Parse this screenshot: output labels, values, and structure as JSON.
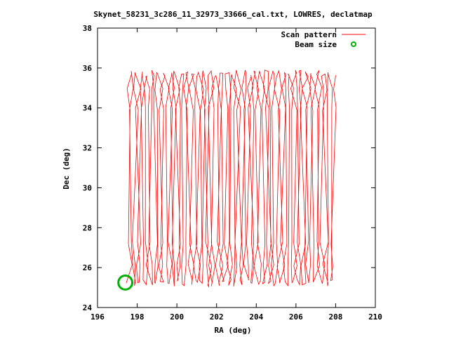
{
  "chart_data": {
    "type": "line",
    "title": "Skynet_58231_3c286_11_32973_33666_cal.txt, LOWRES, declatmap",
    "xlabel": "RA (deg)",
    "ylabel": "Dec (deg)",
    "xlim": [
      196,
      210
    ],
    "ylim": [
      24,
      38
    ],
    "xticks": [
      "196",
      "198",
      "200",
      "202",
      "204",
      "206",
      "208",
      "210"
    ],
    "yticks": [
      "24",
      "26",
      "28",
      "30",
      "32",
      "34",
      "36",
      "38"
    ],
    "legend_position": "top-right",
    "series": [
      {
        "name": "Scan pattern",
        "color": "#ff0000",
        "style": "line",
        "pattern": "raster scan along declination",
        "ra_range": [
          197.6,
          207.9
        ],
        "dec_range": [
          25.0,
          36.0
        ],
        "sweep_count": 72
      },
      {
        "name": "Beam size",
        "color": "#00b000",
        "style": "circle",
        "center": [
          197.4,
          25.25
        ],
        "radius_ra": 0.35,
        "radius_dec": 0.35
      }
    ]
  }
}
